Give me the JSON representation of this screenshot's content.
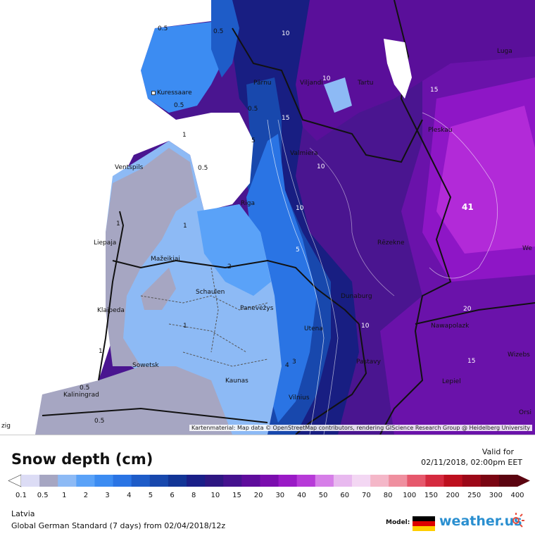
{
  "map": {
    "attribution": "Kartenmaterial: Map data © OpenStreetMap contributors, rendering GIScience Research Group @ Heidelberg University",
    "cities": [
      {
        "name": "Kuressaare"
      },
      {
        "name": "Pärnu"
      },
      {
        "name": "Viljandi"
      },
      {
        "name": "Tartu"
      },
      {
        "name": "Luga"
      },
      {
        "name": "Pleskau"
      },
      {
        "name": "Valmiera"
      },
      {
        "name": "Ventspils"
      },
      {
        "name": "Riga"
      },
      {
        "name": "Liepaja"
      },
      {
        "name": "Mažeikiai"
      },
      {
        "name": "Rēzekne"
      },
      {
        "name": "Schaulen"
      },
      {
        "name": "Panevėžys"
      },
      {
        "name": "Klaipeda"
      },
      {
        "name": "Dunaburg"
      },
      {
        "name": "Utena"
      },
      {
        "name": "Nawapolazk"
      },
      {
        "name": "Sowetsk"
      },
      {
        "name": "Pastavy"
      },
      {
        "name": "Kaunas"
      },
      {
        "name": "Kaliningrad"
      },
      {
        "name": "Vilnius"
      },
      {
        "name": "Wizebs"
      },
      {
        "name": "Lepiel"
      },
      {
        "name": "Orsi"
      },
      {
        "name": "We"
      },
      {
        "name": "zig"
      }
    ],
    "contour_labels": [
      "0.5",
      "0.5",
      "10",
      "15",
      "10",
      "0.5",
      "5",
      "1",
      "10",
      "0.5",
      "0.5",
      "1",
      "1",
      "1",
      "1",
      "2",
      "5",
      "15",
      "10",
      "20",
      "10",
      "4",
      "3",
      "0.5",
      "0.5",
      "15"
    ],
    "max_value_label": "41"
  },
  "header": {
    "title": "Snow depth (cm)",
    "valid_label": "Valid for",
    "valid_datetime": "02/11/2018, 02:00pm EET"
  },
  "legend": {
    "ticks": [
      "0.1",
      "0.5",
      "1",
      "2",
      "3",
      "4",
      "5",
      "6",
      "8",
      "10",
      "15",
      "20",
      "30",
      "40",
      "50",
      "60",
      "70",
      "80",
      "100",
      "150",
      "200",
      "250",
      "300",
      "400"
    ],
    "colors": [
      "#dcdcf5",
      "#a6a6c2",
      "#8dbaf5",
      "#5aa2f8",
      "#3c8cf2",
      "#2a74e4",
      "#1e5cc8",
      "#1848ad",
      "#123596",
      "#1a1f88",
      "#2e1782",
      "#45128e",
      "#5f0c9c",
      "#7b0dae",
      "#9a1ac6",
      "#b73ad8",
      "#d67ee8",
      "#e8b9ef",
      "#f3d7f3",
      "#f4b7c8",
      "#ef8f9f",
      "#e6586c",
      "#d52a3f",
      "#bd0f1e",
      "#9c0818",
      "#7a0512",
      "#5b0410"
    ]
  },
  "footer": {
    "region": "Latvia",
    "model_run": "Global German Standard (7 days) from 02/04/2018/12z",
    "model_label": "Model:",
    "brand": "weather.us",
    "flag_colors": [
      "#000000",
      "#dd0000",
      "#ffce00"
    ]
  }
}
